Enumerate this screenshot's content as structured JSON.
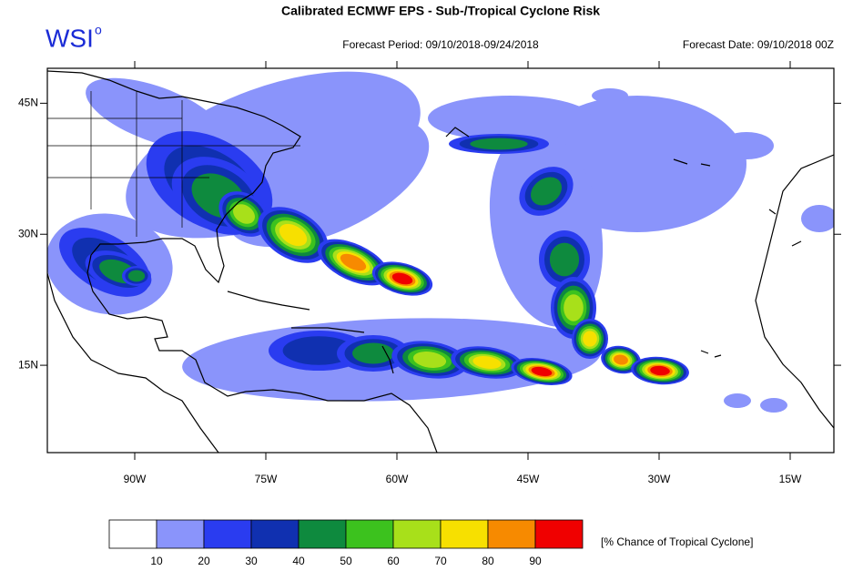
{
  "header": {
    "title": "Calibrated ECMWF EPS - Sub-/Tropical Cyclone Risk",
    "logo": "WSI",
    "logo_mark": "o",
    "forecast_period": "Forecast Period: 09/10/2018-09/24/2018",
    "forecast_date": "Forecast Date: 09/10/2018 00Z"
  },
  "map": {
    "xlim": [
      -100,
      -10
    ],
    "ylim": [
      5,
      49
    ],
    "xticks": [
      {
        "value": -90,
        "label": "90W"
      },
      {
        "value": -75,
        "label": "75W"
      },
      {
        "value": -60,
        "label": "60W"
      },
      {
        "value": -45,
        "label": "45W"
      },
      {
        "value": -30,
        "label": "30W"
      },
      {
        "value": -15,
        "label": "15W"
      }
    ],
    "yticks": [
      {
        "value": 45,
        "label": "45N"
      },
      {
        "value": 30,
        "label": "30N"
      },
      {
        "value": 15,
        "label": "15N"
      }
    ]
  },
  "colorbar": {
    "levels": [
      10,
      20,
      30,
      40,
      50,
      60,
      70,
      80,
      90
    ],
    "colors": [
      "#ffffff",
      "#8a94fb",
      "#2a3cf0",
      "#1030b0",
      "#0e8a3e",
      "#3cc21e",
      "#a8e01a",
      "#f7e000",
      "#f78a00",
      "#f00000"
    ],
    "label": "[% Chance of Tropical Cyclone]"
  }
}
